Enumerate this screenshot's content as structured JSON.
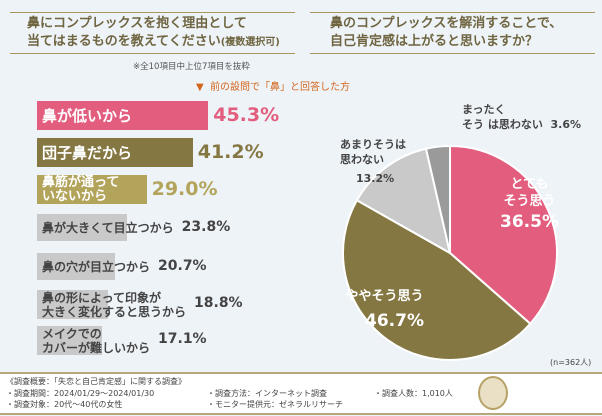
{
  "left": {
    "title_line1": "鼻にコンプレックスを抱く理由として",
    "title_line2": "当てはまるものを教えてください",
    "title_suffix": "(複数選択可)",
    "note": "※全10項目中上位7項目を抜粋",
    "filter": "前の設問で「鼻」と回答した方",
    "filter_icon": "triangle-down-icon"
  },
  "right": {
    "title_line1": "鼻のコンプレックスを解消することで、",
    "title_line2": "自己肯定感は上がると思いますか？",
    "n": "(n=362人)"
  },
  "chart_data": [
    {
      "type": "bar",
      "orientation": "horizontal",
      "categories": [
        "鼻が低いから",
        "団子鼻だから",
        "鼻筋が通っていないから",
        "鼻が大きくて目立つから",
        "鼻の穴が目立つから",
        "鼻の形によって印象が大きく変化すると思うから",
        "メイクでのカバーが難しいから"
      ],
      "labels": [
        [
          "鼻が低いから"
        ],
        [
          "団子鼻だから"
        ],
        [
          "鼻筋が通って",
          "いないから"
        ],
        [
          "鼻が大きくて目立つから"
        ],
        [
          "鼻の穴が目立つから"
        ],
        [
          "鼻の形によって印象が",
          "大きく変化すると思うから"
        ],
        [
          "メイクでの",
          "カバーが難しいから"
        ]
      ],
      "values": [
        45.3,
        41.2,
        29.0,
        23.8,
        20.7,
        18.8,
        17.1
      ],
      "value_labels": [
        "45.3%",
        "41.2%",
        "29.0%",
        "23.8%",
        "20.7%",
        "18.8%",
        "17.1%"
      ],
      "colors": [
        "#e35d7e",
        "#857742",
        "#b3a45c",
        "#c9c9c9",
        "#c9c9c9",
        "#c9c9c9",
        "#c9c9c9"
      ]
    },
    {
      "type": "pie",
      "categories": [
        "とてもそう思う",
        "ややそう思う",
        "あまりそうは思わない",
        "まったくそうは思わない"
      ],
      "values": [
        36.5,
        46.7,
        13.2,
        3.6
      ],
      "value_labels": [
        "36.5%",
        "46.7%",
        "13.2%",
        "3.6%"
      ],
      "colors": [
        "#e35d7e",
        "#857742",
        "#c9c9c9",
        "#9a9a9a"
      ]
    }
  ],
  "footer": {
    "heading": "《調査概要：「失恋と自己肯定感」に関する調査》",
    "period": "・調査期間：2024/01/29～2024/01/30",
    "target": "・調査対象：20代～40代の女性",
    "method": "・調査方法：インターネット調査",
    "provider": "・モニター提供元：ゼネラルリサーチ",
    "count": "・調査人数：1,010人"
  }
}
